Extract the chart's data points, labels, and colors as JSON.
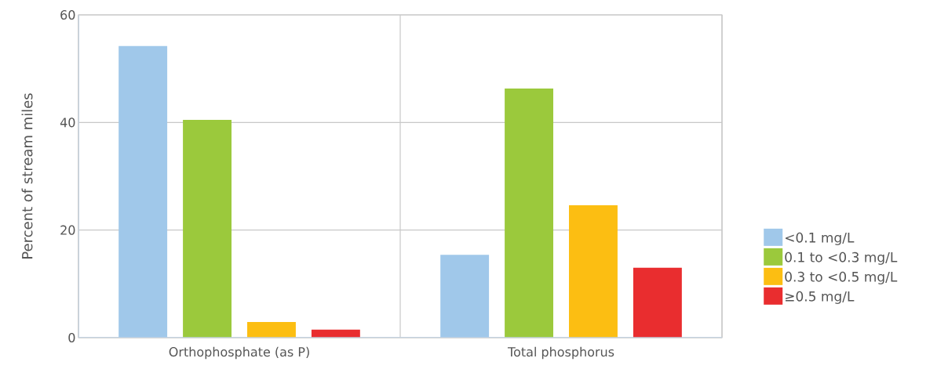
{
  "chart_data": {
    "type": "bar",
    "ylabel": "Percent of stream miles",
    "categories": [
      "Orthophosphate (as P)",
      "Total phosphorus"
    ],
    "series": [
      {
        "name": "<0.1 mg/L",
        "color": "#a0c8ea",
        "values": [
          54.2,
          15.4
        ]
      },
      {
        "name": "0.1 to <0.3 mg/L",
        "color": "#9bc93c",
        "values": [
          40.5,
          46.3
        ]
      },
      {
        "name": "0.3 to <0.5 mg/L",
        "color": "#fcbe12",
        "values": [
          2.9,
          24.6
        ]
      },
      {
        "name": "≥0.5 mg/L",
        "color": "#e92d2f",
        "values": [
          1.5,
          13.0
        ]
      }
    ],
    "ylim": [
      0,
      60
    ],
    "yticks": [
      0,
      20,
      40,
      60
    ],
    "grid": true,
    "legend": "right"
  }
}
